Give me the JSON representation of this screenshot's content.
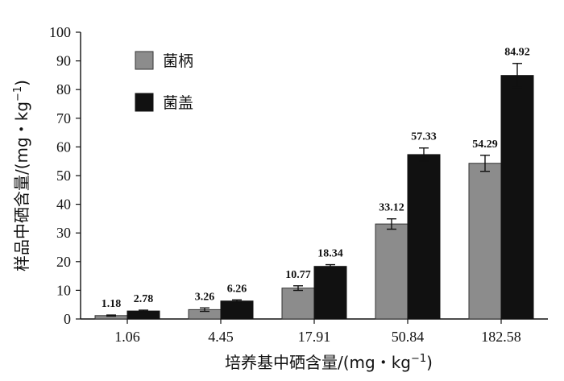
{
  "chart_data": {
    "type": "bar",
    "categories": [
      "1.06",
      "4.45",
      "17.91",
      "50.84",
      "182.58"
    ],
    "series": [
      {
        "name": "菌柄",
        "values": [
          1.18,
          3.26,
          10.77,
          33.12,
          54.29
        ],
        "labels": [
          "1.18",
          "3.26",
          "10.77",
          "33.12",
          "54.29"
        ],
        "errors": [
          0.2,
          0.6,
          0.8,
          1.8,
          2.8
        ],
        "color": "#8c8c8c"
      },
      {
        "name": "菌盖",
        "values": [
          2.78,
          6.26,
          18.34,
          57.33,
          84.92
        ],
        "labels": [
          "2.78",
          "6.26",
          "18.34",
          "57.33",
          "84.92"
        ],
        "errors": [
          0.3,
          0.4,
          0.6,
          2.3,
          4.2
        ],
        "color": "#111111"
      }
    ],
    "ylim": [
      0,
      100
    ],
    "yticks": [
      "0",
      "10",
      "20",
      "30",
      "40",
      "50",
      "60",
      "70",
      "80",
      "90",
      "100"
    ],
    "xlabel": "培养基中硒含量/(mg・kg",
    "xlabel_exp": "−1",
    "xlabel_close": ")",
    "ylabel": "样品中硒含量/(mg・kg",
    "ylabel_exp": "−1",
    "ylabel_close": ")",
    "legend_position": "top-left",
    "grid": false
  }
}
